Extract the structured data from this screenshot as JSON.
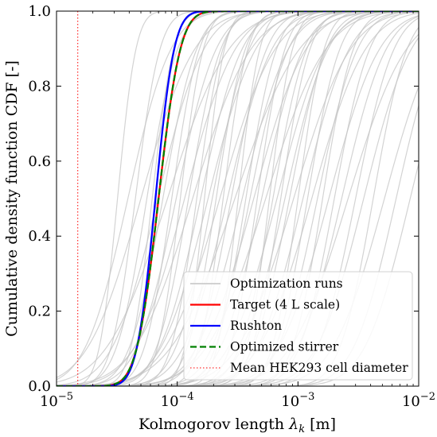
{
  "chart_data": {
    "type": "line",
    "xscale": "log",
    "xlim": [
      1e-05,
      0.01
    ],
    "ylim": [
      0,
      1
    ],
    "x_ticks": [
      {
        "value": 1e-05,
        "base": "10",
        "exp": "−5"
      },
      {
        "value": 0.0001,
        "base": "10",
        "exp": "−4"
      },
      {
        "value": 0.001,
        "base": "10",
        "exp": "−3"
      },
      {
        "value": 0.01,
        "base": "10",
        "exp": "−2"
      }
    ],
    "y_ticks": [
      {
        "value": 0.0,
        "label": "0.0"
      },
      {
        "value": 0.2,
        "label": "0.2"
      },
      {
        "value": 0.4,
        "label": "0.4"
      },
      {
        "value": 0.6,
        "label": "0.6"
      },
      {
        "value": 0.8,
        "label": "0.8"
      },
      {
        "value": 1.0,
        "label": "1.0"
      }
    ],
    "xlabel_text": "Kolmogorov length ",
    "xlabel_symbol": "λ",
    "xlabel_sub": "k",
    "xlabel_unit": " [m]",
    "ylabel": "Cumulative density function CDF [-]",
    "legend_position": "lower right",
    "grid": false,
    "series": [
      {
        "name": "Optimization runs",
        "color": "#c4c4c4",
        "style": "solid",
        "kind": "bundle",
        "medians_m": [
          3.2e-05,
          3.9e-05,
          4.5e-05,
          5e-05,
          5.6e-05,
          6.2e-05,
          6.9e-05,
          7.6e-05,
          8.3e-05,
          9e-05,
          9.8e-05,
          0.000106,
          0.000115,
          0.000124,
          0.000134,
          0.000145,
          0.000156,
          0.000168,
          0.00018,
          0.000195,
          0.00021,
          0.000225,
          0.00024,
          0.00026,
          0.00028,
          0.0003,
          0.00032,
          0.000345,
          0.00037,
          0.0004,
          0.00043,
          0.00046,
          0.0005,
          0.00054,
          0.00058,
          0.00062,
          0.00067,
          0.00072,
          0.00078,
          0.00085,
          0.00092,
          0.001,
          0.0011,
          0.0012,
          0.0013,
          0.00145,
          0.0016,
          0.0018,
          0.002,
          0.0023,
          0.0026,
          0.003,
          0.0035,
          0.0042,
          0.0052,
          0.0065,
          0.0085
        ],
        "log10_spreads": [
          0.12,
          0.28,
          0.16,
          0.35,
          0.2,
          0.14,
          0.3,
          0.22,
          0.4,
          0.18,
          0.26,
          0.15,
          0.33,
          0.21,
          0.38,
          0.17,
          0.27,
          0.13,
          0.31,
          0.24,
          0.19,
          0.36,
          0.16,
          0.29,
          0.23,
          0.42,
          0.14,
          0.3,
          0.2,
          0.25,
          0.34,
          0.18,
          0.27,
          0.39,
          0.15,
          0.22,
          0.32,
          0.19,
          0.28,
          0.24,
          0.37,
          0.17,
          0.3,
          0.21,
          0.35,
          0.26,
          0.2,
          0.33,
          0.23,
          0.29,
          0.38,
          0.25,
          0.31,
          0.22,
          0.34,
          0.28,
          0.3
        ]
      },
      {
        "name": "Target (4 L scale)",
        "color": "#ff0000",
        "style": "solid",
        "width": 2.3,
        "median_m": 7e-05,
        "log10_spread": 0.142
      },
      {
        "name": "Rushton",
        "color": "#0000ff",
        "style": "solid",
        "width": 2.3,
        "median_m": 6.6e-05,
        "log10_spread": 0.122
      },
      {
        "name": "Optimized stirrer",
        "color": "#008000",
        "style": "dashed",
        "width": 2.3,
        "median_m": 7e-05,
        "log10_spread": 0.142
      },
      {
        "name": "Mean HEK293 cell diameter",
        "color": "#ff0000",
        "style": "dotted",
        "kind": "vline",
        "x": 1.5e-05
      }
    ]
  }
}
